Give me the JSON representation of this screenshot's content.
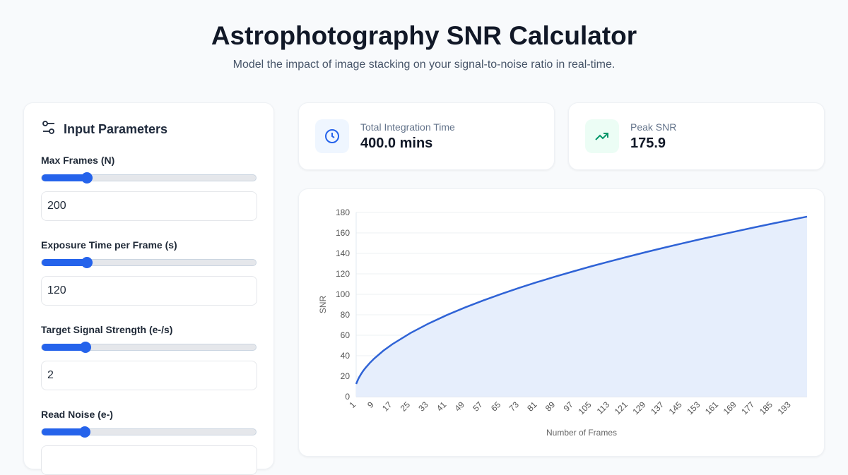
{
  "header": {
    "title": "Astrophotography SNR Calculator",
    "subtitle": "Model the impact of image stacking on your signal-to-noise ratio in real-time."
  },
  "inputs": {
    "title": "Input Parameters",
    "fields": [
      {
        "label": "Max Frames (N)",
        "value": "200",
        "slider_fraction": 0.21
      },
      {
        "label": "Exposure Time per Frame (s)",
        "value": "120",
        "slider_fraction": 0.21
      },
      {
        "label": "Target Signal Strength (e-/s)",
        "value": "2",
        "slider_fraction": 0.205
      },
      {
        "label": "Read Noise (e-)",
        "value": "",
        "slider_fraction": 0.2
      }
    ]
  },
  "stats": [
    {
      "label": "Total Integration Time",
      "value": "400.0 mins",
      "icon": "clock-icon",
      "color": "#2563eb",
      "bg": "#eff6ff"
    },
    {
      "label": "Peak SNR",
      "value": "175.9",
      "icon": "trending-up-icon",
      "color": "#059669",
      "bg": "#ecfdf5"
    }
  ],
  "chart_data": {
    "type": "area",
    "xlabel": "Number of Frames",
    "ylabel": "SNR",
    "xlim": [
      1,
      200
    ],
    "ylim": [
      0,
      180
    ],
    "yticks": [
      0,
      20,
      40,
      60,
      80,
      100,
      120,
      140,
      160,
      180
    ],
    "xticks": [
      1,
      9,
      17,
      25,
      33,
      41,
      49,
      57,
      65,
      73,
      81,
      89,
      97,
      105,
      113,
      121,
      129,
      137,
      145,
      153,
      161,
      169,
      177,
      185,
      193
    ],
    "x": [
      1,
      2,
      3,
      4,
      5,
      7,
      9,
      13,
      17,
      25,
      33,
      41,
      49,
      57,
      65,
      73,
      81,
      89,
      97,
      105,
      113,
      121,
      129,
      137,
      145,
      153,
      161,
      169,
      177,
      185,
      193,
      200
    ],
    "values": [
      12.4,
      17.6,
      21.5,
      24.9,
      27.8,
      32.9,
      37.3,
      44.9,
      51.3,
      62.2,
      71.5,
      79.7,
      87.1,
      93.9,
      100.3,
      106.3,
      112.0,
      117.4,
      122.5,
      127.5,
      132.2,
      136.8,
      141.3,
      145.6,
      149.8,
      153.9,
      157.8,
      161.7,
      165.5,
      169.2,
      172.8,
      175.9
    ],
    "grid": true,
    "line_color": "#2f63d6",
    "fill_color": "#e6eefc"
  }
}
